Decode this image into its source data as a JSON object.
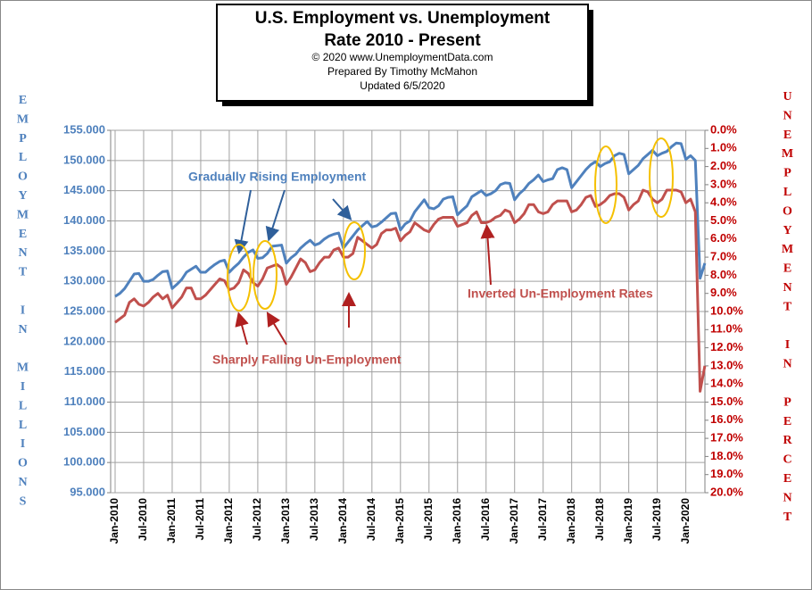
{
  "chart_data": {
    "type": "line",
    "title": "U.S. Employment vs. Unemployment",
    "subtitle": "Rate 2010 - Present",
    "notes": [
      "© 2020  www.UnemploymentData.com",
      "Prepared  By Timothy McMahon",
      "Updated  6/5/2020"
    ],
    "y_label": "EMPLOYMENT IN MILLIONS",
    "y2_label": "UNEMPLOYMENT IN PERCENT",
    "annotations": [
      "Gradually Rising Employment",
      "Sharply Falling Un-Employment",
      "Inverted Un-Employment Rates"
    ],
    "categories": [
      "Jan-2010",
      null,
      null,
      null,
      null,
      null,
      "Jul-2010",
      null,
      null,
      null,
      null,
      null,
      "Jan-2011",
      null,
      null,
      null,
      null,
      null,
      "Jul-2011",
      null,
      null,
      null,
      null,
      null,
      "Jan-2012",
      null,
      null,
      null,
      null,
      null,
      "Jul-2012",
      null,
      null,
      null,
      null,
      null,
      "Jan-2013",
      null,
      null,
      null,
      null,
      null,
      "Jul-2013",
      null,
      null,
      null,
      null,
      null,
      "Jan-2014",
      null,
      null,
      null,
      null,
      null,
      "Jul-2014",
      null,
      null,
      null,
      null,
      null,
      "Jan-2015",
      null,
      null,
      null,
      null,
      null,
      "Jul-2015",
      null,
      null,
      null,
      null,
      null,
      "Jan-2016",
      null,
      null,
      null,
      null,
      null,
      "Jul-2016",
      null,
      null,
      null,
      null,
      null,
      "Jan-2017",
      null,
      null,
      null,
      null,
      null,
      "Jul-2017",
      null,
      null,
      null,
      null,
      null,
      "Jan-2018",
      null,
      null,
      null,
      null,
      null,
      "Jul-2018",
      null,
      null,
      null,
      null,
      null,
      "Jan-2019",
      null,
      null,
      null,
      null,
      null,
      "Jul-2019",
      null,
      null,
      null,
      null,
      null,
      "Jan-2020",
      null,
      null,
      null,
      null
    ],
    "series": [
      {
        "color": "#4f81bd",
        "axis": "y",
        "values": [
          127.5,
          128.0,
          128.8,
          130.0,
          131.2,
          131.3,
          130.0,
          130.0,
          130.3,
          131.0,
          131.6,
          131.7,
          128.8,
          129.5,
          130.3,
          131.5,
          132.0,
          132.5,
          131.5,
          131.5,
          132.2,
          132.8,
          133.3,
          133.5,
          131.5,
          132.3,
          133.0,
          134.0,
          134.8,
          135.2,
          133.8,
          133.9,
          134.6,
          135.8,
          135.9,
          136.0,
          133.0,
          133.9,
          134.5,
          135.5,
          136.2,
          136.8,
          136.0,
          136.3,
          137.0,
          137.5,
          137.8,
          138.0,
          135.5,
          136.5,
          137.5,
          138.5,
          139.2,
          139.9,
          139.0,
          139.2,
          139.8,
          140.5,
          141.2,
          141.3,
          138.5,
          139.5,
          140.0,
          141.5,
          142.5,
          143.5,
          142.2,
          142.0,
          142.5,
          143.6,
          143.9,
          144.0,
          141.0,
          141.8,
          142.5,
          144.0,
          144.5,
          145.0,
          144.2,
          144.5,
          145.0,
          146.0,
          146.3,
          146.2,
          143.5,
          144.5,
          145.2,
          146.2,
          146.8,
          147.6,
          146.5,
          146.8,
          147.0,
          148.5,
          148.8,
          148.5,
          145.5,
          146.5,
          147.5,
          148.5,
          149.3,
          149.8,
          149.0,
          149.5,
          149.8,
          150.8,
          151.2,
          151.0,
          147.8,
          148.5,
          149.2,
          150.3,
          151.0,
          151.7,
          150.8,
          151.2,
          151.5,
          152.3,
          152.9,
          152.8,
          150.2,
          150.8,
          150.0,
          130.5,
          133.0
        ]
      },
      {
        "color": "#c0504d",
        "axis": "y2",
        "values": [
          10.6,
          10.4,
          10.2,
          9.5,
          9.3,
          9.6,
          9.7,
          9.5,
          9.2,
          9.0,
          9.3,
          9.1,
          9.8,
          9.5,
          9.2,
          8.7,
          8.7,
          9.3,
          9.3,
          9.1,
          8.8,
          8.5,
          8.2,
          8.3,
          8.8,
          8.7,
          8.4,
          7.7,
          7.9,
          8.4,
          8.6,
          8.2,
          7.6,
          7.5,
          7.4,
          7.6,
          8.5,
          8.1,
          7.6,
          7.1,
          7.3,
          7.8,
          7.7,
          7.3,
          7.0,
          7.0,
          6.6,
          6.5,
          7.0,
          7.0,
          6.8,
          5.9,
          6.1,
          6.3,
          6.5,
          6.3,
          5.7,
          5.5,
          5.5,
          5.4,
          6.1,
          5.8,
          5.6,
          5.1,
          5.3,
          5.5,
          5.6,
          5.2,
          4.9,
          4.8,
          4.8,
          4.8,
          5.3,
          5.2,
          5.1,
          4.7,
          4.5,
          5.1,
          5.1,
          5.0,
          4.8,
          4.7,
          4.4,
          4.5,
          5.1,
          4.9,
          4.6,
          4.1,
          4.1,
          4.5,
          4.6,
          4.5,
          4.1,
          3.9,
          3.9,
          3.9,
          4.5,
          4.4,
          4.1,
          3.7,
          3.6,
          4.2,
          4.1,
          3.9,
          3.6,
          3.5,
          3.5,
          3.7,
          4.4,
          4.1,
          3.9,
          3.3,
          3.4,
          3.8,
          4.0,
          3.8,
          3.3,
          3.3,
          3.3,
          3.4,
          4.0,
          3.8,
          4.5,
          14.4,
          13.0
        ]
      }
    ],
    "ylim": [
      95,
      155
    ],
    "yticks": [
      {
        "value": 95,
        "label": "95.000"
      },
      {
        "value": 100,
        "label": "100.000"
      },
      {
        "value": 105,
        "label": "105.000"
      },
      {
        "value": 110,
        "label": "110.000"
      },
      {
        "value": 115,
        "label": "115.000"
      },
      {
        "value": 120,
        "label": "120.000"
      },
      {
        "value": 125,
        "label": "125.000"
      },
      {
        "value": 130,
        "label": "130.000"
      },
      {
        "value": 135,
        "label": "135.000"
      },
      {
        "value": 140,
        "label": "140.000"
      },
      {
        "value": 145,
        "label": "145.000"
      },
      {
        "value": 150,
        "label": "150.000"
      },
      {
        "value": 155,
        "label": "155.000"
      }
    ],
    "y2lim": [
      20,
      0
    ],
    "y2ticks": [
      {
        "value": 0,
        "label": "0.0%"
      },
      {
        "value": 1,
        "label": "1.0%"
      },
      {
        "value": 2,
        "label": "2.0%"
      },
      {
        "value": 3,
        "label": "3.0%"
      },
      {
        "value": 4,
        "label": "4.0%"
      },
      {
        "value": 5,
        "label": "5.0%"
      },
      {
        "value": 6,
        "label": "6.0%"
      },
      {
        "value": 7,
        "label": "7.0%"
      },
      {
        "value": 8,
        "label": "8.0%"
      },
      {
        "value": 9,
        "label": "9.0%"
      },
      {
        "value": 10,
        "label": "10.0%"
      },
      {
        "value": 11,
        "label": "11.0%"
      },
      {
        "value": 12,
        "label": "12.0%"
      },
      {
        "value": 13,
        "label": "13.0%"
      },
      {
        "value": 14,
        "label": "14.0%"
      },
      {
        "value": 15,
        "label": "15.0%"
      },
      {
        "value": 16,
        "label": "16.0%"
      },
      {
        "value": 17,
        "label": "17.0%"
      },
      {
        "value": 18,
        "label": "18.0%"
      },
      {
        "value": 19,
        "label": "19.0%"
      },
      {
        "value": 20,
        "label": "20.0%"
      }
    ],
    "grid": true
  }
}
